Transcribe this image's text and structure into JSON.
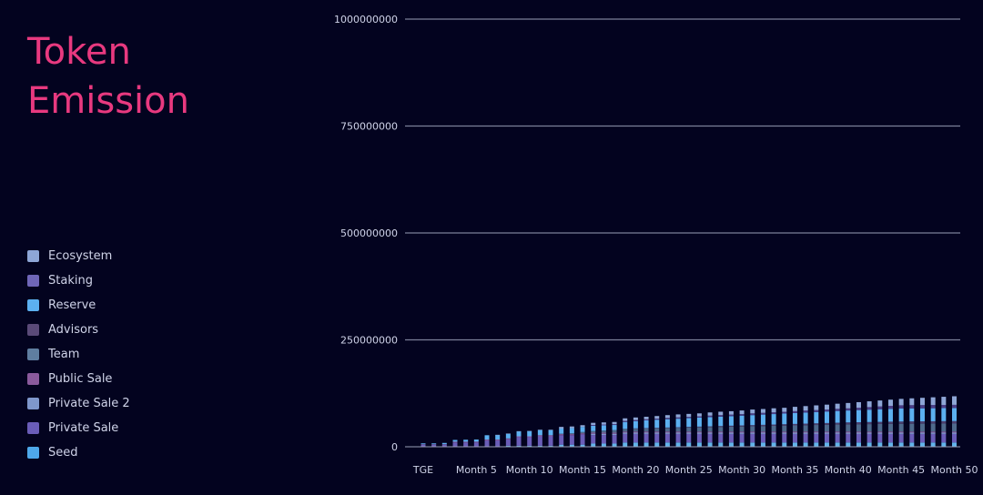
{
  "header": {
    "title_line1": "Token",
    "title_line2": "Emission"
  },
  "chart_data": {
    "type": "bar",
    "stacked": true,
    "title": "Token Emission",
    "x": [
      0,
      1,
      2,
      3,
      4,
      5,
      6,
      7,
      8,
      9,
      10,
      11,
      12,
      13,
      14,
      15,
      16,
      17,
      18,
      19,
      20,
      21,
      22,
      23,
      24,
      25,
      26,
      27,
      28,
      29,
      30,
      31,
      32,
      33,
      34,
      35,
      36,
      37,
      38,
      39,
      40,
      41,
      42,
      43,
      44,
      45,
      46,
      47,
      48,
      49,
      50
    ],
    "tick_labels": [
      {
        "x": 0,
        "label": "TGE"
      },
      {
        "x": 5,
        "label": "Month 5"
      },
      {
        "x": 10,
        "label": "Month 10"
      },
      {
        "x": 15,
        "label": "Month 15"
      },
      {
        "x": 20,
        "label": "Month 20"
      },
      {
        "x": 25,
        "label": "Month 25"
      },
      {
        "x": 30,
        "label": "Month 30"
      },
      {
        "x": 35,
        "label": "Month 35"
      },
      {
        "x": 40,
        "label": "Month 40"
      },
      {
        "x": 45,
        "label": "Month 45"
      },
      {
        "x": 50,
        "label": "Month 50"
      }
    ],
    "y_ticks": [
      0,
      250000000,
      500000000,
      750000000,
      1000000000
    ],
    "y_tick_labels": [
      "0",
      "250000000",
      "500000000",
      "750000000",
      "1000000000"
    ],
    "ylim": [
      0,
      1000000000
    ],
    "legend_position": "left",
    "grid": true,
    "series": [
      {
        "name": "Seed",
        "color": "#62b3ea",
        "values": [
          0,
          0,
          0,
          0,
          0,
          0,
          0,
          0,
          2500000,
          2500000,
          2500000,
          2500000,
          2500000,
          5000000,
          5000000,
          5000000,
          7500000,
          7500000,
          7500000,
          10000000,
          10000000,
          10000000,
          10000000,
          10000000,
          10000000,
          10000000,
          10000000,
          10000000,
          10000000,
          10000000,
          10000000,
          10000000,
          10000000,
          10000000,
          10000000,
          10000000,
          10000000,
          10000000,
          10000000,
          10000000,
          10000000,
          10000000,
          10000000,
          10000000,
          10000000,
          10000000,
          10000000,
          10000000,
          10000000,
          10000000,
          10000000
        ]
      },
      {
        "name": "Private Sale",
        "color": "#6a5db8",
        "values": [
          5000000,
          5000000,
          5000000,
          10000000,
          10000000,
          10000000,
          15000000,
          15000000,
          15000000,
          20000000,
          20000000,
          22000000,
          22000000,
          22000000,
          22000000,
          24000000,
          20000000,
          20000000,
          20000000,
          20000000,
          20000000,
          20000000,
          20000000,
          20000000,
          20000000,
          20000000,
          20000000,
          20000000,
          20000000,
          20000000,
          20000000,
          20000000,
          20000000,
          20000000,
          20000000,
          20000000,
          20000000,
          20000000,
          20000000,
          20000000,
          20000000,
          20000000,
          20000000,
          20000000,
          20000000,
          20000000,
          20000000,
          20000000,
          20000000,
          20000000,
          20000000
        ]
      },
      {
        "name": "Private Sale 2",
        "color": "#7f97cc",
        "values": [
          0,
          0,
          0,
          0,
          0,
          0,
          0,
          0,
          0,
          0,
          0,
          0,
          0,
          0,
          0,
          0,
          3000000,
          3000000,
          3000000,
          3000000,
          3000000,
          3000000,
          3000000,
          3000000,
          3000000,
          3000000,
          3000000,
          3000000,
          3000000,
          3000000,
          3000000,
          3000000,
          3000000,
          3000000,
          3000000,
          3000000,
          3000000,
          3000000,
          3000000,
          3000000,
          3000000,
          3000000,
          3000000,
          3000000,
          3000000,
          3000000,
          3000000,
          3000000,
          3000000,
          3000000,
          3000000
        ]
      },
      {
        "name": "Public Sale",
        "color": "#8a5a9c",
        "values": [
          1000000,
          1000000,
          1000000,
          2000000,
          2000000,
          2000000,
          2000000,
          2000000,
          2000000,
          2000000,
          2000000,
          2500000,
          2500000,
          2500000,
          2500000,
          2500000,
          2500000,
          2500000,
          2500000,
          2500000,
          2500000,
          2500000,
          2500000,
          2500000,
          2500000,
          2500000,
          2500000,
          2500000,
          2500000,
          2500000,
          2500000,
          2500000,
          2500000,
          2500000,
          2500000,
          2500000,
          2500000,
          2500000,
          2500000,
          2500000,
          2500000,
          2500000,
          2500000,
          2500000,
          2500000,
          2500000,
          2500000,
          2500000,
          2500000,
          2500000,
          2500000
        ]
      },
      {
        "name": "Team",
        "color": "#4f6a8c",
        "values": [
          0,
          0,
          0,
          0,
          0,
          0,
          0,
          0,
          0,
          0,
          0,
          0,
          0,
          1000000,
          2000000,
          3000000,
          4000000,
          5000000,
          6000000,
          6500000,
          7000000,
          7500000,
          8000000,
          8500000,
          9000000,
          9500000,
          10000000,
          10500000,
          11000000,
          11500000,
          12000000,
          12500000,
          13000000,
          13500000,
          14000000,
          14500000,
          15000000,
          15500000,
          16000000,
          16500000,
          17000000,
          17250000,
          17500000,
          17750000,
          18000000,
          18200000,
          18400000,
          18500000,
          18600000,
          18700000,
          18800000
        ]
      },
      {
        "name": "Advisors",
        "color": "#4a3f6e",
        "values": [
          0,
          0,
          0,
          0,
          0,
          0,
          0,
          0,
          0,
          0,
          0,
          0,
          0,
          0,
          0,
          0,
          0,
          0,
          0,
          0,
          500000,
          700000,
          900000,
          1000000,
          1200000,
          1400000,
          1600000,
          1800000,
          2000000,
          2200000,
          2400000,
          2600000,
          2800000,
          3000000,
          3200000,
          3400000,
          3600000,
          3800000,
          4000000,
          4200000,
          4400000,
          4600000,
          4800000,
          5000000,
          5200000,
          5300000,
          5400000,
          5500000,
          5600000,
          5700000,
          5800000
        ]
      },
      {
        "name": "Reserve",
        "color": "#5cb0f0",
        "values": [
          2000000,
          2000000,
          3000000,
          4000000,
          4500000,
          5000000,
          10000000,
          10500000,
          11000000,
          11500000,
          12000000,
          12000000,
          12000000,
          12000000,
          12000000,
          12000000,
          12000000,
          12000000,
          12000000,
          16000000,
          17000000,
          18000000,
          19000000,
          19500000,
          20000000,
          20500000,
          21000000,
          21500000,
          22000000,
          22500000,
          23000000,
          23500000,
          24000000,
          24500000,
          25000000,
          25500000,
          26000000,
          26500000,
          27000000,
          27500000,
          28000000,
          28500000,
          29000000,
          29500000,
          30000000,
          30500000,
          30500000,
          30500000,
          30500000,
          30500000,
          30500000
        ]
      },
      {
        "name": "Staking",
        "color": "#4a3e88",
        "values": [
          0,
          0,
          0,
          0,
          0,
          0,
          0,
          0,
          0,
          0,
          0,
          0,
          0,
          0,
          0,
          0,
          2000000,
          2000000,
          2000000,
          2500000,
          2500000,
          2500000,
          2500000,
          3000000,
          3000000,
          3000000,
          3000000,
          3500000,
          3500000,
          3500000,
          3500000,
          4000000,
          4000000,
          4000000,
          4000000,
          4500000,
          4500000,
          4500000,
          4500000,
          5000000,
          5000000,
          5500000,
          6000000,
          6500000,
          7000000,
          7500000,
          7500000,
          7500000,
          7500000,
          7500000,
          7500000
        ]
      },
      {
        "name": "Ecosystem",
        "color": "#8ea6d6",
        "values": [
          0,
          0,
          0,
          0,
          0,
          0,
          0,
          500000,
          500000,
          500000,
          500000,
          1000000,
          1000000,
          4000000,
          4000000,
          4000000,
          5000000,
          5000000,
          5000000,
          6000000,
          6000000,
          6000000,
          6000000,
          6500000,
          7000000,
          7000000,
          7000000,
          7500000,
          8000000,
          8000000,
          8500000,
          9000000,
          9000000,
          9500000,
          9500000,
          10000000,
          10500000,
          11000000,
          11500000,
          12000000,
          12500000,
          13000000,
          13500000,
          14000000,
          14500000,
          15000000,
          16000000,
          17000000,
          18000000,
          19000000,
          20000000
        ]
      }
    ]
  },
  "legend": [
    {
      "label": "Ecosystem",
      "color": "#8ea6d6"
    },
    {
      "label": "Staking",
      "color": "#6f66b8"
    },
    {
      "label": "Reserve",
      "color": "#5cb0f0"
    },
    {
      "label": "Advisors",
      "color": "#5a4a78"
    },
    {
      "label": "Team",
      "color": "#5f7ea0"
    },
    {
      "label": "Public Sale",
      "color": "#8a5a9c"
    },
    {
      "label": "Private Sale 2",
      "color": "#7f97cc"
    },
    {
      "label": "Private Sale",
      "color": "#6a5db8"
    },
    {
      "label": "Seed",
      "color": "#4ea8ea"
    }
  ]
}
